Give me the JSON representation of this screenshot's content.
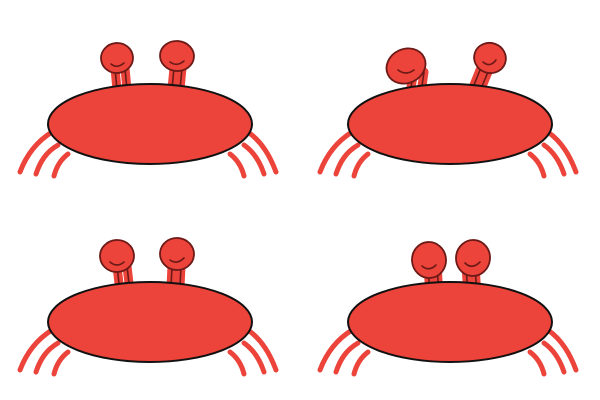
{
  "colors": {
    "background": "#ffffff",
    "crab_body": "#ec433a",
    "outline": "#111111",
    "eye_line": "#6b1a17"
  },
  "crabs": [
    {
      "icon": "crab-icon",
      "eye_pose": "upright"
    },
    {
      "icon": "crab-icon",
      "eye_pose": "tilted-outward"
    },
    {
      "icon": "crab-icon",
      "eye_pose": "upright"
    },
    {
      "icon": "crab-icon",
      "eye_pose": "close-together"
    }
  ]
}
